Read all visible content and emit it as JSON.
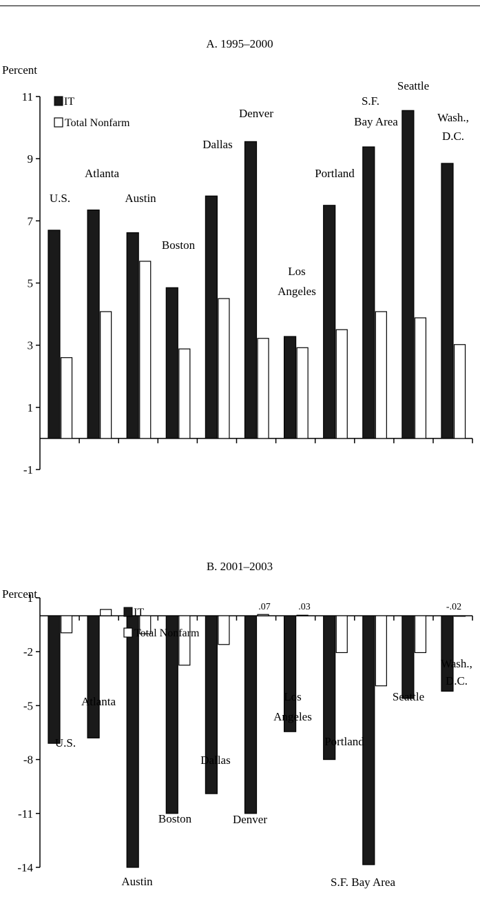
{
  "chart_data": [
    {
      "type": "bar",
      "title": "A.  1995–2000",
      "ylabel": "Percent",
      "ylim": [
        -1,
        11
      ],
      "yticks": [
        11,
        9,
        7,
        5,
        3,
        1,
        -1
      ],
      "legend": [
        "IT",
        "Total Nonfarm"
      ],
      "legend_position": "top-left",
      "categories": [
        "U.S.",
        "Atlanta",
        "Austin",
        "Boston",
        "Dallas",
        "Denver",
        "Los Angeles",
        "Portland",
        "S.F. Bay Area",
        "Seattle",
        "Wash., D.C."
      ],
      "category_labels": [
        [
          "U.S."
        ],
        [
          "Atlanta"
        ],
        [
          "Austin"
        ],
        [
          "Boston"
        ],
        [
          "Dallas"
        ],
        [
          "Denver"
        ],
        [
          "Los",
          "Angeles"
        ],
        [
          "Portland"
        ],
        [
          "S.F.",
          "Bay Area"
        ],
        [
          "Seattle"
        ],
        [
          "Wash.,",
          "D.C."
        ]
      ],
      "series": [
        {
          "name": "IT",
          "color": "#1a1a1a",
          "values": [
            6.7,
            7.35,
            6.62,
            4.85,
            7.8,
            9.55,
            3.28,
            7.5,
            9.38,
            10.55,
            8.85
          ]
        },
        {
          "name": "Total Nonfarm",
          "color": "#ffffff",
          "values": [
            2.6,
            4.08,
            5.7,
            2.88,
            4.5,
            3.22,
            2.92,
            3.5,
            4.08,
            3.88,
            3.02
          ]
        }
      ],
      "data_labels": []
    },
    {
      "type": "bar",
      "title": "B.  2001–2003",
      "ylabel": "Percent",
      "ylim": [
        -14,
        1
      ],
      "yticks": [
        1,
        -2,
        -5,
        -8,
        -11,
        -14
      ],
      "legend": [
        "IT",
        "Total Nonfarm"
      ],
      "legend_position": "top-center",
      "categories": [
        "U.S.",
        "Atlanta",
        "Austin",
        "Boston",
        "Dallas",
        "Denver",
        "Los Angeles",
        "Portland",
        "S.F. Bay Area",
        "Seattle",
        "Wash., D.C."
      ],
      "category_labels": [
        [
          "U.S."
        ],
        [
          "Atlanta"
        ],
        [
          "Austin"
        ],
        [
          "Boston"
        ],
        [
          "Dallas"
        ],
        [
          "Denver"
        ],
        [
          "Los",
          "Angeles"
        ],
        [
          "Portland"
        ],
        [
          "S.F. Bay Area"
        ],
        [
          "Seattle"
        ],
        [
          "Wash.,",
          "D.C."
        ]
      ],
      "series": [
        {
          "name": "IT",
          "color": "#1a1a1a",
          "values": [
            -7.1,
            -6.8,
            -14.0,
            -11.0,
            -9.9,
            -11.0,
            -6.45,
            -8.0,
            -13.85,
            -4.6,
            -4.2
          ]
        },
        {
          "name": "Total Nonfarm",
          "color": "#ffffff",
          "values": [
            -0.95,
            0.35,
            -1.0,
            -2.75,
            -1.6,
            0.07,
            0.03,
            -2.05,
            -3.9,
            -2.05,
            -0.02
          ]
        }
      ],
      "data_labels": [
        {
          "category": "Denver",
          "text": ".07"
        },
        {
          "category": "Los Angeles",
          "text": ".03"
        },
        {
          "category": "Wash., D.C.",
          "text": "-.02"
        }
      ]
    }
  ]
}
